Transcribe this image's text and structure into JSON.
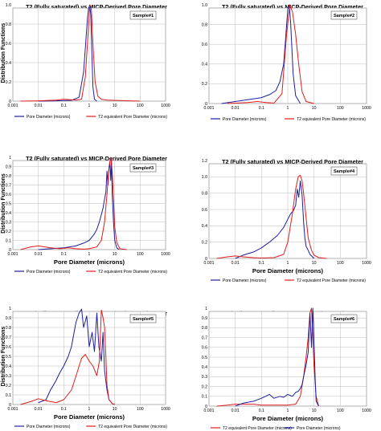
{
  "colors": {
    "pore": "#1f1f9e",
    "t2": "#e11d1d",
    "grid": "#bdbdbd",
    "frame": "#7f7f7f"
  },
  "chart_data": [
    {
      "type": "line",
      "title": "T2 (Fully saturated) vs MICP-Derived Pore Diameter",
      "xlabel": "",
      "ylabel": "Distribution Functions",
      "xscale": "log",
      "xlim": [
        0.001,
        1000
      ],
      "ylim": [
        0,
        1
      ],
      "xticks": [
        "0.001",
        "0.01",
        "0.1",
        "1",
        "10",
        "100",
        "1000"
      ],
      "yticks": [
        "0",
        "0.2",
        "0.4",
        "0.6",
        "0.8",
        "1.0"
      ],
      "sample_label": "Sample#1",
      "legend_order": [
        "pore",
        "t2"
      ],
      "legend_placement": "bottom",
      "series": [
        {
          "key": "pore",
          "name": "Pore Diameter (microns)",
          "x": [
            0.01,
            0.05,
            0.2,
            0.4,
            0.6,
            0.75,
            0.85,
            0.95,
            1.05,
            1.15,
            1.25,
            1.4,
            1.6,
            2
          ],
          "y": [
            0,
            0.003,
            0.008,
            0.04,
            0.3,
            0.65,
            0.86,
            0.97,
            0.99,
            0.9,
            0.55,
            0.15,
            0.02,
            0
          ]
        },
        {
          "key": "t2",
          "name": "T2 equivalent Pore Diameter (microns)",
          "x": [
            0.002,
            0.01,
            0.05,
            0.1,
            0.3,
            0.5,
            0.7,
            0.9,
            1.05,
            1.2,
            1.4,
            1.7,
            2.2,
            3,
            5,
            100
          ],
          "y": [
            0,
            0.003,
            0.01,
            0.02,
            0.01,
            0.02,
            0.25,
            0.7,
            1.0,
            0.98,
            0.6,
            0.2,
            0.05,
            0.02,
            0.01,
            0
          ]
        }
      ]
    },
    {
      "type": "line",
      "title": "T2 (Fully saturated) vs MICP-Derived Pore Diameter",
      "xlabel": "",
      "ylabel": "",
      "xscale": "log",
      "xlim": [
        0.001,
        1000
      ],
      "ylim": [
        0,
        1
      ],
      "xticks": [
        "0.001",
        "0.01",
        "0.1",
        "1",
        "10",
        "100",
        "1000"
      ],
      "yticks": [
        "0",
        "0.2",
        "0.4",
        "0.6",
        "0.8",
        "1.0"
      ],
      "sample_label": "Sample#2",
      "legend_order": [
        "pore",
        "t2"
      ],
      "legend_placement": "bottom",
      "series": [
        {
          "key": "pore",
          "name": "Pore Diameter (microns)",
          "x": [
            0.003,
            0.01,
            0.03,
            0.06,
            0.1,
            0.2,
            0.35,
            0.5,
            0.7,
            0.85,
            1.0,
            1.15,
            1.3,
            1.6,
            2,
            3
          ],
          "y": [
            0,
            0.02,
            0.04,
            0.05,
            0.06,
            0.09,
            0.13,
            0.22,
            0.4,
            0.7,
            0.95,
            1.0,
            0.8,
            0.3,
            0.08,
            0
          ]
        },
        {
          "key": "t2",
          "name": "T2 equivalent Pore Diameter (microns)",
          "x": [
            0.005,
            0.03,
            0.07,
            0.15,
            0.3,
            0.6,
            0.9,
            1.2,
            1.5,
            2,
            2.6,
            3.5,
            5,
            10
          ],
          "y": [
            0,
            0.01,
            0.02,
            0.01,
            0.005,
            0.1,
            0.7,
            1.0,
            0.93,
            0.7,
            0.4,
            0.12,
            0.02,
            0
          ]
        }
      ]
    },
    {
      "type": "line",
      "title": "T2 (Fully saturated) vs MICP-Derived Pore Diameter",
      "xlabel": "Pore Diameter (microns)",
      "ylabel": "Distribution Functions",
      "xscale": "log",
      "xlim": [
        0.001,
        1000
      ],
      "ylim": [
        0,
        1
      ],
      "xticks": [
        "0.001",
        "0.01",
        "0.1",
        "1",
        "10",
        "100",
        "1000"
      ],
      "yticks": [
        "0",
        "0.1",
        "0.2",
        "0.3",
        "0.4",
        "0.5",
        "0.6",
        "0.7",
        "0.8",
        "0.9",
        "1"
      ],
      "sample_label": "Sample#3",
      "legend_order": [
        "pore",
        "t2"
      ],
      "legend_placement": "bottom",
      "series": [
        {
          "key": "pore",
          "name": "Pore Diameter (microns)",
          "x": [
            0.01,
            0.03,
            0.1,
            0.3,
            0.6,
            1,
            1.5,
            2,
            2.5,
            3,
            3.5,
            4,
            4.5,
            5,
            5.5,
            6,
            6.5,
            7,
            7.5,
            8,
            9,
            10,
            12,
            15
          ],
          "y": [
            0,
            0.01,
            0.02,
            0.04,
            0.07,
            0.1,
            0.16,
            0.22,
            0.3,
            0.38,
            0.45,
            0.55,
            0.62,
            0.85,
            0.7,
            0.88,
            0.95,
            0.75,
            0.98,
            0.6,
            0.3,
            0.1,
            0.02,
            0
          ]
        },
        {
          "key": "t2",
          "name": "T2 equivalent Pore Diameter (microns)",
          "x": [
            0.002,
            0.005,
            0.01,
            0.03,
            0.07,
            0.15,
            0.3,
            0.6,
            1,
            2,
            3,
            4,
            5,
            6,
            7,
            8,
            9,
            10,
            12,
            16,
            30
          ],
          "y": [
            0,
            0.03,
            0.04,
            0.02,
            0.01,
            0.02,
            0.01,
            0.005,
            0.01,
            0.03,
            0.1,
            0.3,
            0.6,
            0.9,
            1.0,
            0.85,
            0.55,
            0.25,
            0.08,
            0.01,
            0
          ]
        }
      ]
    },
    {
      "type": "line",
      "title": "T2 (Fully saturated) vs MICP-Derived Pore Diameter",
      "xlabel": "Pore Diameter (microns)",
      "ylabel": "",
      "xscale": "log",
      "xlim": [
        0.001,
        1000
      ],
      "ylim": [
        0,
        1.2
      ],
      "xticks": [
        "0.001",
        "0.01",
        "0.1",
        "1",
        "10",
        "100",
        "1000"
      ],
      "yticks": [
        "0",
        "0.2",
        "0.4",
        "0.6",
        "0.8",
        "1.0",
        "1.2"
      ],
      "sample_label": "Sample#4",
      "legend_order": [
        "pore",
        "t2"
      ],
      "legend_placement": "bottom",
      "series": [
        {
          "key": "pore",
          "name": "Pore Diameter (microns)",
          "x": [
            0.01,
            0.02,
            0.05,
            0.1,
            0.2,
            0.4,
            0.7,
            1,
            1.3,
            1.6,
            2,
            2.3,
            2.6,
            3,
            3.5,
            4,
            4.5,
            5,
            6,
            7,
            10
          ],
          "y": [
            0,
            0.04,
            0.08,
            0.13,
            0.2,
            0.28,
            0.38,
            0.48,
            0.55,
            0.58,
            0.65,
            0.85,
            0.75,
            0.95,
            0.78,
            0.45,
            0.25,
            0.15,
            0.1,
            0.05,
            0
          ]
        },
        {
          "key": "t2",
          "name": "T2 equivalent Pore Diameter (microns)",
          "x": [
            0.002,
            0.005,
            0.01,
            0.02,
            0.05,
            0.1,
            0.3,
            0.7,
            1,
            1.5,
            2,
            2.5,
            3,
            3.5,
            4,
            5,
            6,
            8,
            10,
            15,
            30
          ],
          "y": [
            0,
            0.02,
            0.03,
            0.02,
            0.01,
            0.005,
            0.01,
            0.05,
            0.2,
            0.55,
            0.85,
            1.0,
            1.02,
            0.95,
            0.8,
            0.5,
            0.25,
            0.1,
            0.04,
            0.01,
            0
          ]
        }
      ]
    },
    {
      "type": "line",
      "title": "T2 (Fully saturated) vs MICP-Derived Pore Diameter",
      "xlabel": "Pore Diameter (microns)",
      "ylabel": "Distribution Functions",
      "xscale": "log",
      "xlim": [
        0.001,
        1000
      ],
      "ylim": [
        0,
        1
      ],
      "xticks": [
        "0.001",
        "0.01",
        "0.1",
        "1",
        "10",
        "100",
        "1000"
      ],
      "yticks": [
        "0",
        "0.1",
        "0.2",
        "0.3",
        "0.4",
        "0.5",
        "0.6",
        "0.7",
        "0.8",
        "0.9",
        "1"
      ],
      "sample_label": "Sample#5",
      "legend_order": [
        "pore",
        "t2"
      ],
      "legend_placement": "bottom",
      "series": [
        {
          "key": "pore",
          "name": "Pore Diameter (microns)",
          "x": [
            0.01,
            0.02,
            0.03,
            0.05,
            0.07,
            0.1,
            0.15,
            0.2,
            0.3,
            0.4,
            0.5,
            0.6,
            0.8,
            1,
            1.3,
            1.6,
            2,
            2.4,
            3,
            3.5,
            4,
            5,
            6,
            8,
            10
          ],
          "y": [
            0.02,
            0.05,
            0.15,
            0.25,
            0.33,
            0.4,
            0.5,
            0.6,
            0.85,
            0.95,
            0.99,
            0.8,
            0.92,
            0.6,
            0.75,
            0.55,
            0.95,
            0.6,
            0.45,
            0.75,
            0.35,
            0.15,
            0.05,
            0.01,
            0
          ]
        },
        {
          "key": "t2",
          "name": "T2 equivalent Pore Diameter (microns)",
          "x": [
            0.002,
            0.005,
            0.01,
            0.02,
            0.05,
            0.1,
            0.2,
            0.35,
            0.5,
            0.7,
            1,
            1.4,
            2,
            2.5,
            3,
            3.5,
            4,
            4.5,
            5,
            6,
            8,
            10
          ],
          "y": [
            0,
            0.03,
            0.06,
            0.04,
            0.02,
            0.05,
            0.15,
            0.35,
            0.48,
            0.52,
            0.45,
            0.4,
            0.3,
            0.45,
            0.98,
            0.9,
            0.8,
            0.5,
            0.2,
            0.05,
            0.01,
            0
          ]
        }
      ]
    },
    {
      "type": "line",
      "title": "T2 (Fully saturated) vs MICP-Derived Pore Diameter",
      "xlabel": "Pore Diameter (microns)",
      "ylabel": "",
      "xscale": "log",
      "xlim": [
        0.001,
        1000
      ],
      "ylim": [
        0,
        1
      ],
      "xticks": [
        "0.001",
        "0.01",
        "0.1",
        "1",
        "10",
        "100",
        "1000"
      ],
      "yticks": [
        "0",
        "0.1",
        "0.2",
        "0.3",
        "0.4",
        "0.5",
        "0.6",
        "0.7",
        "0.8",
        "0.9",
        "1"
      ],
      "sample_label": "Sample#6",
      "legend_order": [
        "t2",
        "pore"
      ],
      "legend_placement": "bottom",
      "series": [
        {
          "key": "t2",
          "name": "T2 equivalent Pore Diameter (microns)",
          "x": [
            0.002,
            0.005,
            0.01,
            0.05,
            0.1,
            0.3,
            0.6,
            1,
            2,
            3,
            4,
            5,
            6,
            7,
            8,
            9,
            10,
            12,
            15
          ],
          "y": [
            0,
            0.01,
            0.02,
            0.02,
            0.01,
            0.01,
            0.01,
            0.01,
            0.02,
            0.1,
            0.3,
            0.5,
            0.7,
            0.95,
            1.0,
            0.7,
            0.4,
            0.1,
            0
          ]
        },
        {
          "key": "pore",
          "name": "Pore Diameter (microns)",
          "x": [
            0.01,
            0.02,
            0.05,
            0.1,
            0.2,
            0.3,
            0.5,
            0.7,
            1,
            1.5,
            2,
            2.5,
            3,
            3.5,
            4,
            5,
            6,
            7,
            8,
            9,
            10,
            11,
            12,
            15
          ],
          "y": [
            0,
            0.03,
            0.05,
            0.08,
            0.12,
            0.08,
            0.1,
            0.09,
            0.12,
            0.1,
            0.14,
            0.15,
            0.18,
            0.22,
            0.3,
            0.42,
            0.55,
            0.95,
            0.6,
            1.0,
            0.65,
            0.3,
            0.05,
            0
          ]
        }
      ]
    }
  ]
}
